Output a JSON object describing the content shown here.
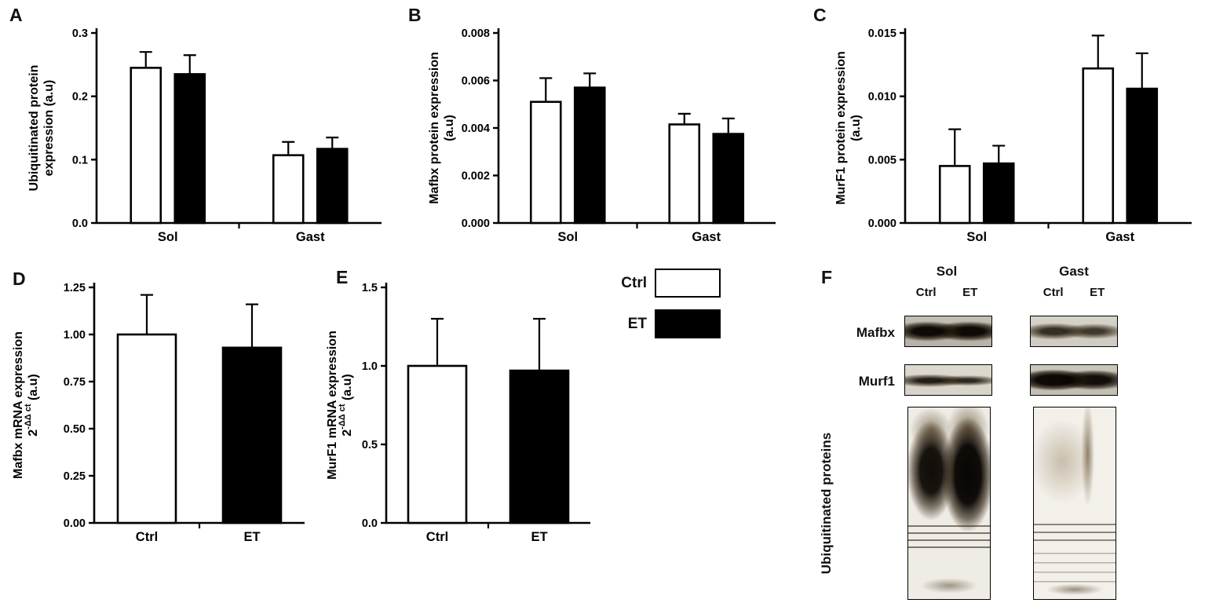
{
  "figure": {
    "panels": {
      "a": "A",
      "b": "B",
      "c": "C",
      "d": "D",
      "e": "E",
      "f": "F"
    }
  },
  "legend": {
    "items": [
      {
        "label": "Ctrl",
        "color": "#ffffff"
      },
      {
        "label": "ET",
        "color": "#000000"
      }
    ]
  },
  "western_blots": {
    "column_headers": [
      "Sol",
      "Gast"
    ],
    "lane_labels": [
      "Ctrl",
      "ET"
    ],
    "row_labels": [
      "Mafbx",
      "Murf1"
    ],
    "side_label": "Ubiquitinated proteins"
  },
  "chart_data": [
    {
      "id": "A",
      "type": "bar",
      "panel": "A",
      "ylabel": [
        [
          {
            "t": "Ubiquitinated protein"
          }
        ],
        [
          {
            "t": "expression (a.u)"
          }
        ]
      ],
      "ylim": [
        0,
        0.3
      ],
      "yticks": [
        {
          "v": 0,
          "label": "0.0"
        },
        {
          "v": 0.1,
          "label": "0.1"
        },
        {
          "v": 0.2,
          "label": "0.2"
        },
        {
          "v": 0.3,
          "label": "0.3"
        }
      ],
      "series_names": [
        "Ctrl",
        "ET"
      ],
      "groups": [
        {
          "label": "Sol",
          "bars": [
            {
              "series": "Ctrl",
              "value": 0.245,
              "error": 0.025,
              "fill": "#ffffff"
            },
            {
              "series": "ET",
              "value": 0.235,
              "error": 0.03,
              "fill": "#000000"
            }
          ]
        },
        {
          "label": "Gast",
          "bars": [
            {
              "series": "Ctrl",
              "value": 0.107,
              "error": 0.021,
              "fill": "#ffffff"
            },
            {
              "series": "ET",
              "value": 0.117,
              "error": 0.018,
              "fill": "#000000"
            }
          ]
        }
      ]
    },
    {
      "id": "B",
      "type": "bar",
      "panel": "B",
      "ylabel": [
        [
          {
            "t": "Mafbx protein expression"
          }
        ],
        [
          {
            "t": "(a.u)"
          }
        ]
      ],
      "ylim": [
        0,
        0.008
      ],
      "yticks": [
        {
          "v": 0,
          "label": "0.000"
        },
        {
          "v": 0.002,
          "label": "0.002"
        },
        {
          "v": 0.004,
          "label": "0.004"
        },
        {
          "v": 0.006,
          "label": "0.006"
        },
        {
          "v": 0.008,
          "label": "0.008"
        }
      ],
      "series_names": [
        "Ctrl",
        "ET"
      ],
      "groups": [
        {
          "label": "Sol",
          "bars": [
            {
              "series": "Ctrl",
              "value": 0.0051,
              "error": 0.001,
              "fill": "#ffffff"
            },
            {
              "series": "ET",
              "value": 0.0057,
              "error": 0.0006,
              "fill": "#000000"
            }
          ]
        },
        {
          "label": "Gast",
          "bars": [
            {
              "series": "Ctrl",
              "value": 0.00415,
              "error": 0.00045,
              "fill": "#ffffff"
            },
            {
              "series": "ET",
              "value": 0.00375,
              "error": 0.00065,
              "fill": "#000000"
            }
          ]
        }
      ]
    },
    {
      "id": "C",
      "type": "bar",
      "panel": "C",
      "ylabel": [
        [
          {
            "t": "MurF1 protein expression"
          }
        ],
        [
          {
            "t": "(a.u)"
          }
        ]
      ],
      "ylim": [
        0,
        0.015
      ],
      "yticks": [
        {
          "v": 0,
          "label": "0.000"
        },
        {
          "v": 0.005,
          "label": "0.005"
        },
        {
          "v": 0.01,
          "label": "0.010"
        },
        {
          "v": 0.015,
          "label": "0.015"
        }
      ],
      "series_names": [
        "Ctrl",
        "ET"
      ],
      "groups": [
        {
          "label": "Sol",
          "bars": [
            {
              "series": "Ctrl",
              "value": 0.0045,
              "error": 0.0029,
              "fill": "#ffffff"
            },
            {
              "series": "ET",
              "value": 0.0047,
              "error": 0.0014,
              "fill": "#000000"
            }
          ]
        },
        {
          "label": "Gast",
          "bars": [
            {
              "series": "Ctrl",
              "value": 0.0122,
              "error": 0.0026,
              "fill": "#ffffff"
            },
            {
              "series": "ET",
              "value": 0.0106,
              "error": 0.0028,
              "fill": "#000000"
            }
          ]
        }
      ]
    },
    {
      "id": "D",
      "type": "bar",
      "panel": "D",
      "ylabel": [
        [
          {
            "t": "Mafbx mRNA expression"
          }
        ],
        [
          {
            "t": "2"
          },
          {
            "t": "-ΔΔ ct",
            "sup": true
          },
          {
            "t": " (a.u)"
          }
        ]
      ],
      "ylim": [
        0,
        1.25
      ],
      "yticks": [
        {
          "v": 0,
          "label": "0.00"
        },
        {
          "v": 0.25,
          "label": "0.25"
        },
        {
          "v": 0.5,
          "label": "0.50"
        },
        {
          "v": 0.75,
          "label": "0.75"
        },
        {
          "v": 1,
          "label": "1.00"
        },
        {
          "v": 1.25,
          "label": "1.25"
        }
      ],
      "series_names": [
        "Ctrl",
        "ET"
      ],
      "groups": [
        {
          "label": "Ctrl",
          "bars": [
            {
              "series": "Ctrl",
              "value": 1.0,
              "error": 0.21,
              "fill": "#ffffff"
            }
          ]
        },
        {
          "label": "ET",
          "bars": [
            {
              "series": "ET",
              "value": 0.93,
              "error": 0.23,
              "fill": "#000000"
            }
          ]
        }
      ]
    },
    {
      "id": "E",
      "type": "bar",
      "panel": "E",
      "ylabel": [
        [
          {
            "t": "MurF1 mRNA expression"
          }
        ],
        [
          {
            "t": "2"
          },
          {
            "t": "-ΔΔ ct",
            "sup": true
          },
          {
            "t": " (a.u)"
          }
        ]
      ],
      "ylim": [
        0,
        1.5
      ],
      "yticks": [
        {
          "v": 0,
          "label": "0.0"
        },
        {
          "v": 0.5,
          "label": "0.5"
        },
        {
          "v": 1,
          "label": "1.0"
        },
        {
          "v": 1.5,
          "label": "1.5"
        }
      ],
      "series_names": [
        "Ctrl",
        "ET"
      ],
      "groups": [
        {
          "label": "Ctrl",
          "bars": [
            {
              "series": "Ctrl",
              "value": 1.0,
              "error": 0.3,
              "fill": "#ffffff"
            }
          ]
        },
        {
          "label": "ET",
          "bars": [
            {
              "series": "ET",
              "value": 0.97,
              "error": 0.33,
              "fill": "#000000"
            }
          ]
        }
      ]
    }
  ]
}
